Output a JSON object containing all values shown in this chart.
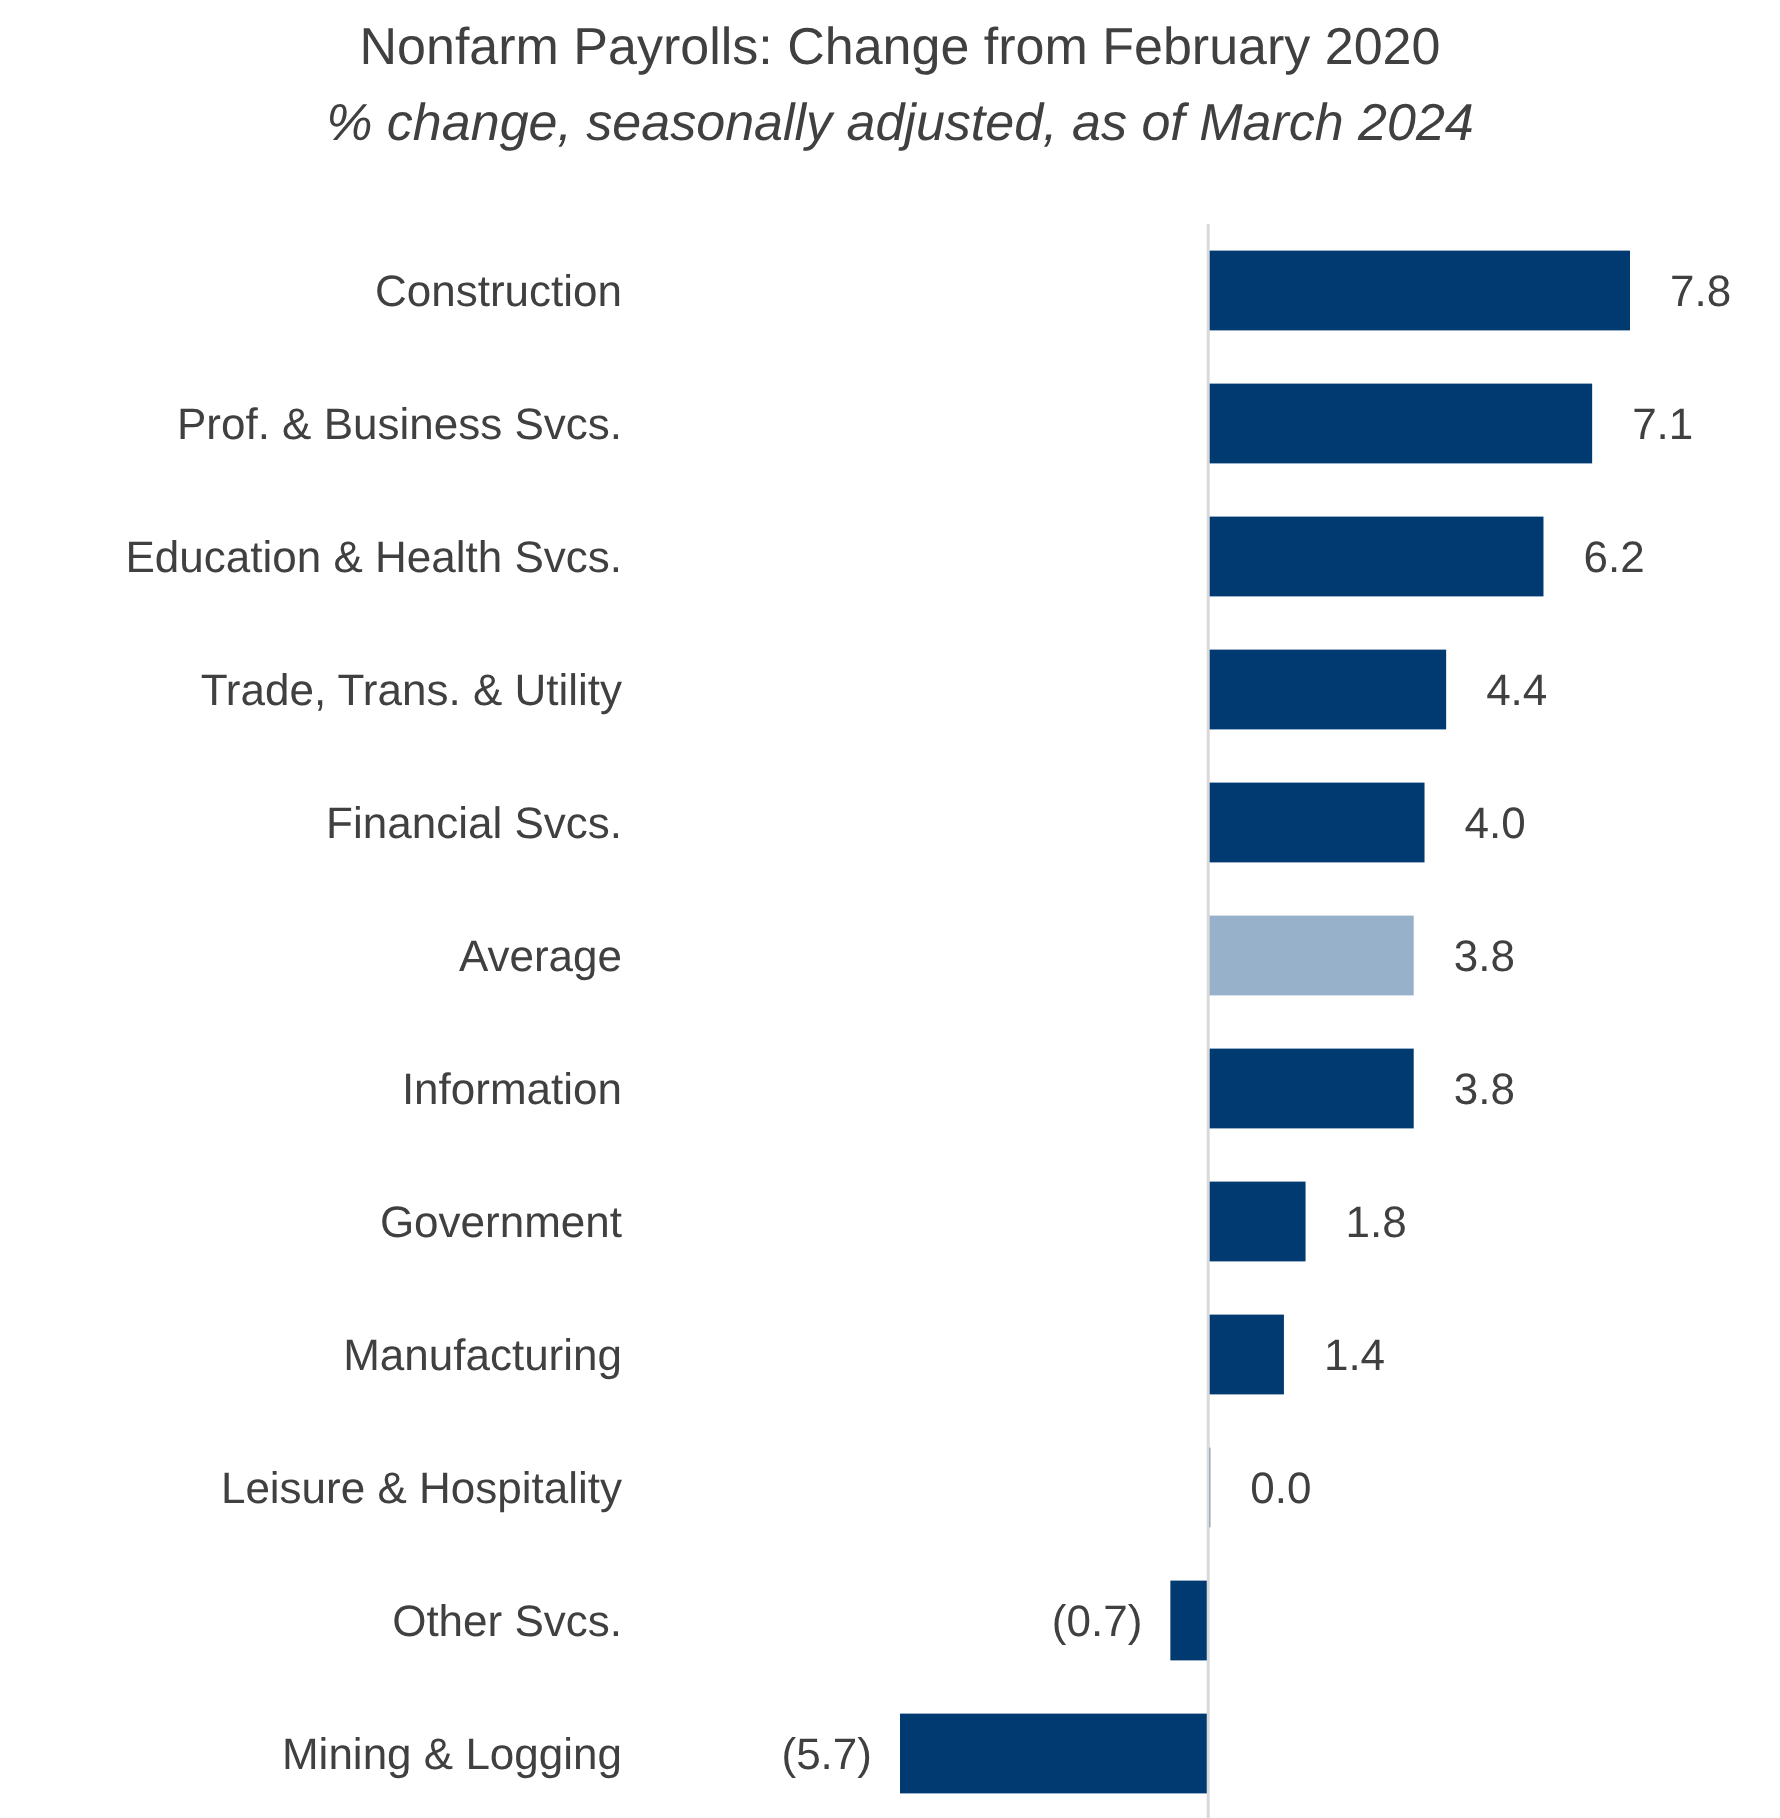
{
  "chart_data": {
    "type": "bar",
    "orientation": "horizontal",
    "relative": false,
    "title": "Nonfarm Payrolls: Change from February 2020",
    "subtitle": "% change, seasonally adjusted, as of March 2024",
    "categories": [
      "Construction",
      "Prof. & Business Svcs.",
      "Education & Health Svcs.",
      "Trade, Trans. & Utility",
      "Financial Svcs.",
      "Average",
      "Information",
      "Government",
      "Manufacturing",
      "Leisure & Hospitality",
      "Other Svcs.",
      "Mining & Logging"
    ],
    "values": [
      7.8,
      7.1,
      6.2,
      4.4,
      4.0,
      3.8,
      3.8,
      1.8,
      1.4,
      0.0,
      -0.7,
      -5.7
    ],
    "value_labels": [
      "7.8",
      "7.1",
      "6.2",
      "4.4",
      "4.0",
      "3.8",
      "3.8",
      "1.8",
      "1.4",
      "0.0",
      "(0.7)",
      "(5.7)"
    ],
    "colors": [
      "#003a70",
      "#003a70",
      "#003a70",
      "#003a70",
      "#003a70",
      "#97b1cb",
      "#003a70",
      "#003a70",
      "#003a70",
      "#003a70",
      "#003a70",
      "#003a70"
    ]
  }
}
